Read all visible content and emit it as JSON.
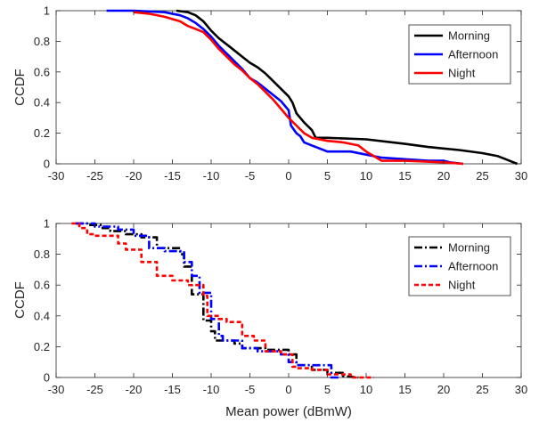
{
  "chart_data": [
    {
      "type": "line",
      "title": "",
      "xlabel": "",
      "ylabel": "CCDF",
      "xlim": [
        -30,
        30
      ],
      "ylim": [
        0,
        1
      ],
      "xticks": [
        "-30",
        "-25",
        "-20",
        "-15",
        "-10",
        "-5",
        "0",
        "5",
        "10",
        "15",
        "20",
        "25",
        "30"
      ],
      "yticks": [
        "0",
        "0.2",
        "0.4",
        "0.6",
        "0.8",
        "1"
      ],
      "grid": false,
      "legend_position": "top-right",
      "series": [
        {
          "name": "Morning",
          "color": "#000000",
          "style": "solid",
          "x": [
            -14.5,
            -13,
            -12,
            -11,
            -10.5,
            -10,
            -9,
            -8,
            -7,
            -6,
            -5,
            -4,
            -3,
            -2,
            -1,
            0,
            0.5,
            1,
            2,
            3,
            3.5,
            5,
            10,
            15,
            18,
            20,
            22,
            25,
            27,
            28,
            29,
            29.5
          ],
          "y": [
            1,
            0.99,
            0.97,
            0.93,
            0.9,
            0.87,
            0.82,
            0.78,
            0.74,
            0.7,
            0.66,
            0.63,
            0.59,
            0.54,
            0.49,
            0.44,
            0.4,
            0.33,
            0.27,
            0.22,
            0.17,
            0.17,
            0.16,
            0.13,
            0.11,
            0.1,
            0.09,
            0.07,
            0.05,
            0.03,
            0.01,
            0
          ]
        },
        {
          "name": "Afternoon",
          "color": "#0000ff",
          "style": "solid",
          "x": [
            -23.5,
            -20,
            -16,
            -14,
            -13,
            -12,
            -11,
            -10,
            -9,
            -8,
            -7,
            -6,
            -5,
            -4,
            -3,
            -2,
            -1,
            0,
            0.3,
            1,
            1.5,
            2,
            3,
            4,
            5,
            8,
            10,
            12,
            15,
            18,
            20,
            20.8,
            22.5
          ],
          "y": [
            1,
            1,
            0.99,
            0.97,
            0.95,
            0.92,
            0.88,
            0.83,
            0.77,
            0.72,
            0.67,
            0.62,
            0.56,
            0.53,
            0.49,
            0.45,
            0.41,
            0.35,
            0.25,
            0.2,
            0.18,
            0.14,
            0.12,
            0.1,
            0.08,
            0.08,
            0.06,
            0.04,
            0.03,
            0.02,
            0.02,
            0.01,
            0
          ]
        },
        {
          "name": "Night",
          "color": "#ff0000",
          "style": "solid",
          "x": [
            -20,
            -18,
            -16,
            -14,
            -13,
            -12,
            -11,
            -10,
            -9,
            -8,
            -7,
            -6,
            -5,
            -4,
            -3,
            -2,
            -1,
            0,
            1,
            2,
            3,
            4,
            5,
            7,
            9,
            10,
            11,
            12,
            15,
            20,
            22.5
          ],
          "y": [
            0.99,
            0.98,
            0.96,
            0.93,
            0.9,
            0.88,
            0.86,
            0.81,
            0.75,
            0.7,
            0.65,
            0.61,
            0.56,
            0.52,
            0.47,
            0.42,
            0.36,
            0.3,
            0.25,
            0.2,
            0.17,
            0.16,
            0.15,
            0.14,
            0.12,
            0.08,
            0.05,
            0.02,
            0.02,
            0.01,
            0
          ]
        }
      ]
    },
    {
      "type": "line",
      "title": "",
      "xlabel": "Mean power (dBmW)",
      "ylabel": "CCDF",
      "xlim": [
        -30,
        30
      ],
      "ylim": [
        0,
        1
      ],
      "xticks": [
        "-30",
        "-25",
        "-20",
        "-15",
        "-10",
        "-5",
        "0",
        "5",
        "10",
        "15",
        "20",
        "25",
        "30"
      ],
      "yticks": [
        "0",
        "0.2",
        "0.4",
        "0.6",
        "0.8",
        "1"
      ],
      "grid": false,
      "legend_position": "top-right",
      "series": [
        {
          "name": "Morning",
          "color": "#000000",
          "style": "dashdot",
          "x": [
            -27.5,
            -26,
            -26,
            -24,
            -24,
            -23,
            -23,
            -21,
            -21,
            -19,
            -19,
            -17,
            -17,
            -14,
            -14,
            -13.5,
            -13.5,
            -12.5,
            -12.5,
            -11,
            -11,
            -10,
            -10,
            -9.5,
            -9.5,
            -7,
            -7,
            -6,
            -6,
            -3,
            -3,
            0,
            0,
            1,
            1,
            3,
            3,
            5,
            5,
            7,
            7,
            9
          ],
          "y": [
            1,
            1,
            0.99,
            0.99,
            0.97,
            0.97,
            0.95,
            0.95,
            0.93,
            0.93,
            0.91,
            0.91,
            0.84,
            0.84,
            0.8,
            0.8,
            0.72,
            0.72,
            0.54,
            0.54,
            0.37,
            0.37,
            0.3,
            0.3,
            0.24,
            0.24,
            0.22,
            0.22,
            0.19,
            0.19,
            0.18,
            0.18,
            0.15,
            0.15,
            0.08,
            0.08,
            0.05,
            0.05,
            0.03,
            0.03,
            0.01,
            0
          ]
        },
        {
          "name": "Afternoon",
          "color": "#0000ff",
          "style": "dashdot",
          "x": [
            -27.5,
            -25,
            -25,
            -22,
            -22,
            -20,
            -20,
            -18,
            -18,
            -16,
            -16,
            -13.5,
            -13.5,
            -12.5,
            -12.5,
            -11.5,
            -11.5,
            -10,
            -10,
            -9,
            -9,
            -8.5,
            -8.5,
            -6,
            -6,
            -4,
            -4,
            -1,
            -1,
            0,
            0,
            1,
            1,
            3,
            3,
            5.5,
            5.5,
            6.5
          ],
          "y": [
            1,
            1,
            0.98,
            0.98,
            0.96,
            0.96,
            0.92,
            0.92,
            0.84,
            0.84,
            0.82,
            0.82,
            0.75,
            0.75,
            0.66,
            0.66,
            0.55,
            0.55,
            0.38,
            0.38,
            0.27,
            0.27,
            0.24,
            0.24,
            0.19,
            0.19,
            0.17,
            0.17,
            0.15,
            0.15,
            0.1,
            0.1,
            0.08,
            0.08,
            0.08,
            0.08,
            0,
            0
          ]
        },
        {
          "name": "Night",
          "color": "#ff0000",
          "style": "dashed",
          "x": [
            -28,
            -27,
            -27,
            -26,
            -26,
            -25,
            -25,
            -22,
            -22,
            -21,
            -21,
            -19,
            -19,
            -17,
            -17,
            -16,
            -16,
            -15,
            -15,
            -13,
            -13,
            -11,
            -11,
            -10.5,
            -10.5,
            -9,
            -9,
            -8,
            -8,
            -6,
            -6,
            -4.5,
            -4.5,
            -3,
            -3,
            -1,
            -1,
            0.5,
            0.5,
            1,
            1,
            3,
            3,
            5,
            5,
            8,
            8,
            11
          ],
          "y": [
            1,
            1,
            0.97,
            0.97,
            0.93,
            0.93,
            0.92,
            0.92,
            0.87,
            0.87,
            0.83,
            0.83,
            0.75,
            0.75,
            0.66,
            0.66,
            0.66,
            0.66,
            0.63,
            0.63,
            0.6,
            0.6,
            0.53,
            0.53,
            0.4,
            0.4,
            0.38,
            0.38,
            0.36,
            0.36,
            0.27,
            0.27,
            0.24,
            0.24,
            0.17,
            0.17,
            0.15,
            0.15,
            0.07,
            0.07,
            0.06,
            0.06,
            0.05,
            0.05,
            0.02,
            0.02,
            0,
            0
          ]
        }
      ]
    }
  ]
}
